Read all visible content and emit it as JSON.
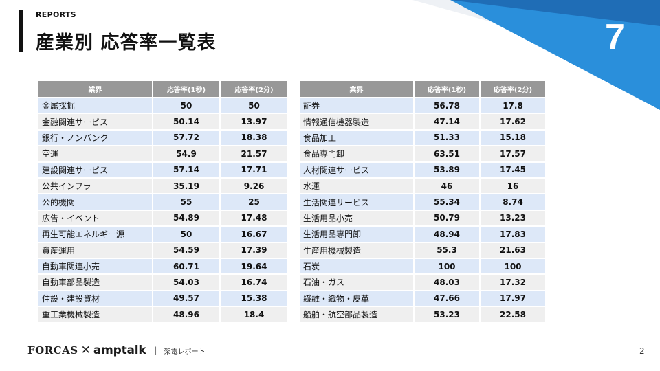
{
  "header": {
    "kicker": "REPORTS",
    "title": "産業別 応答率一覧表",
    "slide_number": "7"
  },
  "colors": {
    "accent_blue": "#2a8fdb",
    "accent_dark_blue": "#1f6db6",
    "header_row_gray": "#989898",
    "row_blue": "#dde8f8",
    "row_gray": "#efefef"
  },
  "table_left": {
    "columns": [
      "業界",
      "応答率(1秒)",
      "応答率(2分)"
    ],
    "rows": [
      {
        "name": "金属採掘",
        "r1": "50",
        "r2": "50"
      },
      {
        "name": "金融関連サービス",
        "r1": "50.14",
        "r2": "13.97"
      },
      {
        "name": "銀行・ノンバンク",
        "r1": "57.72",
        "r2": "18.38"
      },
      {
        "name": "空運",
        "r1": "54.9",
        "r2": "21.57"
      },
      {
        "name": "建設関連サービス",
        "r1": "57.14",
        "r2": "17.71"
      },
      {
        "name": "公共インフラ",
        "r1": "35.19",
        "r2": "9.26"
      },
      {
        "name": "公的機関",
        "r1": "55",
        "r2": "25"
      },
      {
        "name": "広告・イベント",
        "r1": "54.89",
        "r2": "17.48"
      },
      {
        "name": "再生可能エネルギー源",
        "r1": "50",
        "r2": "16.67"
      },
      {
        "name": "資産運用",
        "r1": "54.59",
        "r2": "17.39"
      },
      {
        "name": "自動車関連小売",
        "r1": "60.71",
        "r2": "19.64"
      },
      {
        "name": "自動車部品製造",
        "r1": "54.03",
        "r2": "16.74"
      },
      {
        "name": "住設・建設資材",
        "r1": "49.57",
        "r2": "15.38"
      },
      {
        "name": "重工業機械製造",
        "r1": "48.96",
        "r2": "18.4"
      }
    ]
  },
  "table_right": {
    "columns": [
      "業界",
      "応答率(1秒)",
      "応答率(2分)"
    ],
    "rows": [
      {
        "name": "証券",
        "r1": "56.78",
        "r2": "17.8"
      },
      {
        "name": "情報通信機器製造",
        "r1": "47.14",
        "r2": "17.62"
      },
      {
        "name": "食品加工",
        "r1": "51.33",
        "r2": "15.18"
      },
      {
        "name": "食品専門卸",
        "r1": "63.51",
        "r2": "17.57"
      },
      {
        "name": "人材関連サービス",
        "r1": "53.89",
        "r2": "17.45"
      },
      {
        "name": "水運",
        "r1": "46",
        "r2": "16"
      },
      {
        "name": "生活関連サービス",
        "r1": "55.34",
        "r2": "8.74"
      },
      {
        "name": "生活用品小売",
        "r1": "50.79",
        "r2": "13.23"
      },
      {
        "name": "生活用品専門卸",
        "r1": "48.94",
        "r2": "17.83"
      },
      {
        "name": "生産用機械製造",
        "r1": "55.3",
        "r2": "21.63"
      },
      {
        "name": "石炭",
        "r1": "100",
        "r2": "100"
      },
      {
        "name": "石油・ガス",
        "r1": "48.03",
        "r2": "17.32"
      },
      {
        "name": "繊維・織物・皮革",
        "r1": "47.66",
        "r2": "17.97"
      },
      {
        "name": "船舶・航空部品製造",
        "r1": "53.23",
        "r2": "22.58"
      }
    ]
  },
  "footer": {
    "brand_forcas": "FORCAS",
    "brand_x": "✕",
    "brand_amptalk": "amptalk",
    "separator": "|",
    "text": "架電レポート",
    "page_number": "2"
  }
}
